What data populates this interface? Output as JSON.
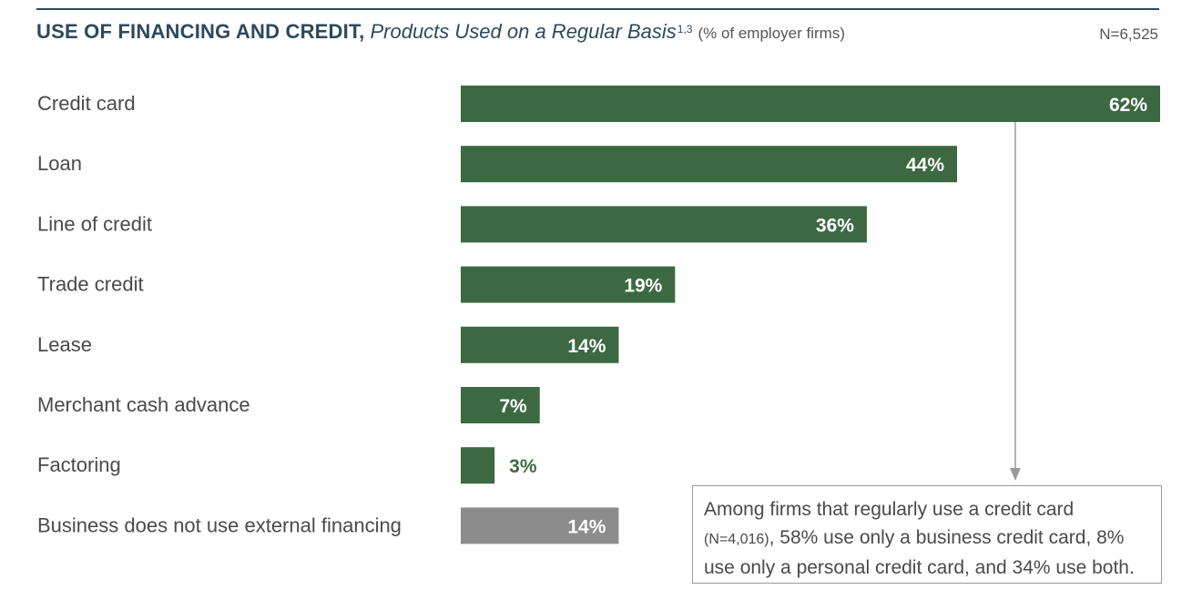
{
  "header": {
    "title": "USE OF FINANCING AND CREDIT,",
    "subtitle": "Products Used on a Regular Basis",
    "footnote_ref": "1,3",
    "unit_note": "(% of employer firms)",
    "n_total": "N=6,525"
  },
  "colors": {
    "bar_primary": "#3d6942",
    "bar_secondary": "#8c8c8c",
    "title": "#2c4a5e",
    "arrow": "#9a9a9a"
  },
  "chart_data": {
    "type": "bar",
    "orientation": "horizontal",
    "title": "USE OF FINANCING AND CREDIT, Products Used on a Regular Basis",
    "xlim": [
      0,
      62
    ],
    "categories": [
      "Credit card",
      "Loan",
      "Line of credit",
      "Trade credit",
      "Lease",
      "Merchant cash advance",
      "Factoring",
      "Business does not use external financing"
    ],
    "values": [
      62,
      44,
      36,
      19,
      14,
      7,
      3,
      14
    ],
    "value_labels": [
      "62%",
      "44%",
      "36%",
      "19%",
      "14%",
      "7%",
      "3%",
      "14%"
    ],
    "bar_styles": [
      "primary",
      "primary",
      "primary",
      "primary",
      "primary",
      "primary",
      "primary",
      "secondary"
    ],
    "grid": false,
    "legend": "none"
  },
  "callout": {
    "line1": "Among firms that regularly use a credit card",
    "n_note": "(N=4,016)",
    "rest": ", 58% use only a business credit card, 8% use only a personal credit card, and 34% use both."
  }
}
